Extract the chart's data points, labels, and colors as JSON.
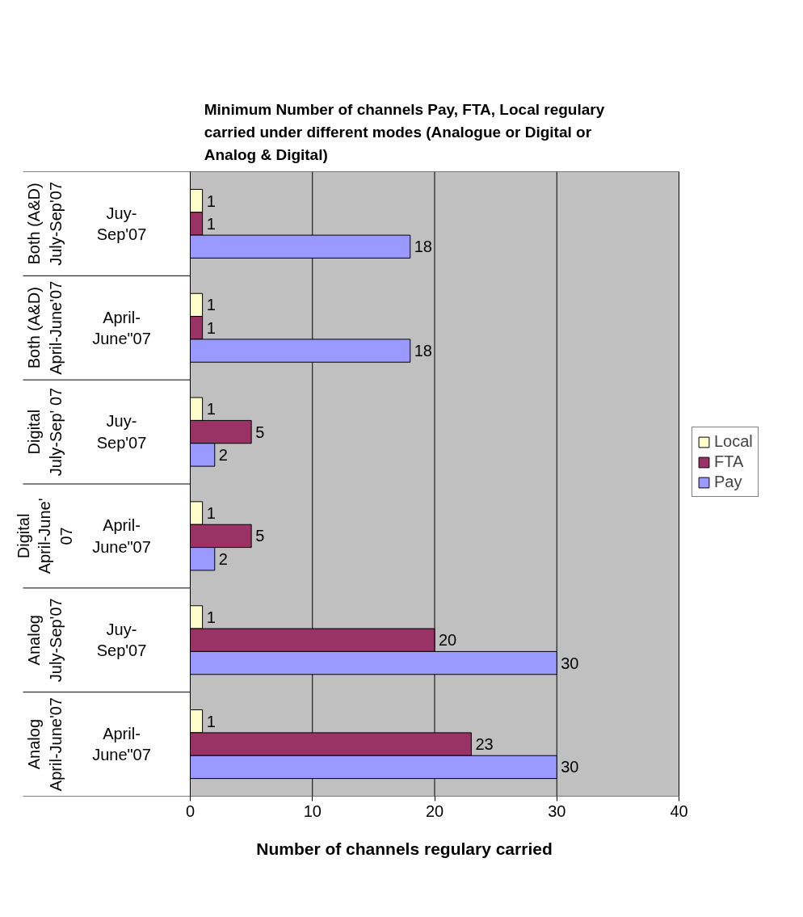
{
  "chart_data": {
    "type": "bar",
    "orientation": "horizontal",
    "title": "Minimum Number of channels Pay, FTA, Local regulary carried under different modes  (Analogue or Digital or Analog & Digital)",
    "xlabel": "Number of channels regulary carried",
    "categories": [
      "Both (A&D) July-Sep'07",
      "Both (A&D) April-June'07",
      "Digital July-Sep' 07",
      "Digital April-June' 07",
      "Analog July-Sep'07",
      "Analog April-June'07"
    ],
    "annotations": [
      "Juy-Sep'07",
      "April-June\"07",
      "Juy-Sep'07",
      "April-June\"07",
      "Juy-Sep'07",
      "April-June\"07"
    ],
    "series": [
      {
        "name": "Local",
        "color": "#ffffcc",
        "values": [
          1,
          1,
          1,
          1,
          1,
          1
        ]
      },
      {
        "name": "FTA",
        "color": "#993366",
        "values": [
          1,
          1,
          5,
          5,
          20,
          23
        ]
      },
      {
        "name": "Pay",
        "color": "#9999ff",
        "values": [
          18,
          18,
          2,
          2,
          30,
          30
        ]
      }
    ],
    "xlim": [
      0,
      40
    ],
    "xticks": [
      0,
      10,
      20,
      30,
      40
    ],
    "grid": "x",
    "legend": "right",
    "data_labels": true
  }
}
